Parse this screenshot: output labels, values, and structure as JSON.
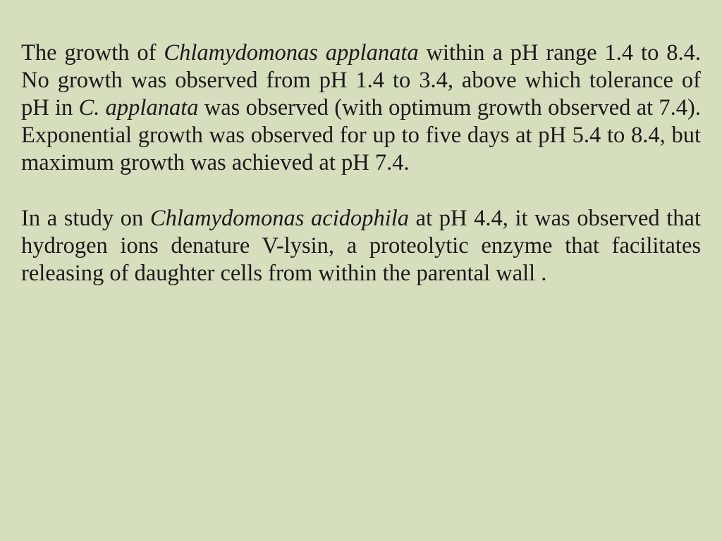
{
  "slide": {
    "background_color": "#d5dfbd",
    "text_color": "#1a1a1a",
    "font_family": "Times New Roman",
    "font_size_pt": 24,
    "paragraphs": [
      {
        "runs": [
          {
            "text": "The growth of ",
            "italic": false
          },
          {
            "text": "Chlamydomonas applanata",
            "italic": true
          },
          {
            "text": " within a pH range 1.4 to 8.4. No growth was observed from pH 1.4 to 3.4, above which tolerance of pH in ",
            "italic": false
          },
          {
            "text": "C. applanata",
            "italic": true
          },
          {
            "text": " was observed (with optimum growth observed at 7.4). Exponential growth was observed for up to five days at pH 5.4 to 8.4, but maximum growth was achieved at pH 7.4.",
            "italic": false
          }
        ]
      },
      {
        "runs": [
          {
            "text": " In a study on ",
            "italic": false
          },
          {
            "text": "Chlamydomonas acidophila",
            "italic": true
          },
          {
            "text": " at pH 4.4, it was observed that hydrogen ions denature V-lysin, a proteolytic enzyme that facilitates releasing of daughter cells from within the parental wall .",
            "italic": false
          }
        ]
      }
    ]
  }
}
